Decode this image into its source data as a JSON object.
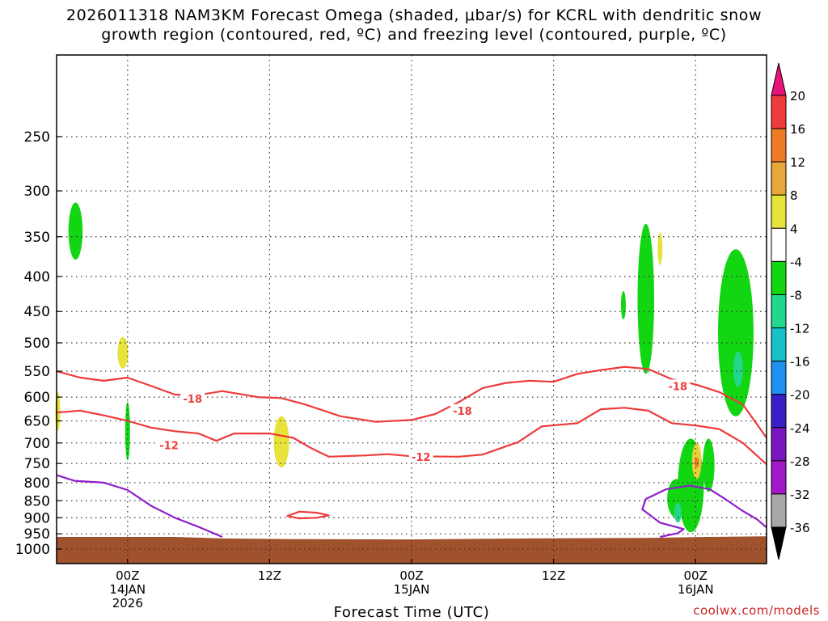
{
  "title": {
    "line1": "2026011318 NAM3KM Forecast Omega (shaded, μbar/s) for KCRL with dendritic snow",
    "line2": "growth region (contoured, red, ºC) and freezing level (contoured, purple, ºC)"
  },
  "credit": "coolwx.com/models",
  "chart_data": {
    "type": "time-height cross section",
    "xlabel": "Forecast Time (UTC)",
    "ylabel": "",
    "y_scale": "log pressure (hPa), inverted",
    "ylim": [
      1050,
      190
    ],
    "xlim_hours_from_init": [
      0,
      60
    ],
    "init_time": "2026011318",
    "y_ticks": [
      250,
      300,
      350,
      400,
      450,
      500,
      550,
      600,
      650,
      700,
      750,
      800,
      850,
      900,
      950,
      1000
    ],
    "x_ticks": [
      {
        "hour": 6,
        "label": "00Z",
        "sub1": "14JAN",
        "sub2": "2026"
      },
      {
        "hour": 18,
        "label": "12Z",
        "sub1": "",
        "sub2": ""
      },
      {
        "hour": 30,
        "label": "00Z",
        "sub1": "15JAN",
        "sub2": ""
      },
      {
        "hour": 42,
        "label": "12Z",
        "sub1": "",
        "sub2": ""
      },
      {
        "hour": 54,
        "label": "00Z",
        "sub1": "16JAN",
        "sub2": ""
      }
    ],
    "grid": true,
    "colorbar": {
      "position": "right",
      "labels": [
        "20",
        "16",
        "12",
        "8",
        "4",
        "-4",
        "-8",
        "-12",
        "-16",
        "-20",
        "-24",
        "-28",
        "-32",
        "-36"
      ],
      "colors": [
        "#e8127a",
        "#ef3b3b",
        "#ef7a28",
        "#e7a83a",
        "#e9cf3a",
        "#e7e33a",
        "#ffffff",
        "#11d611",
        "#22d68b",
        "#17c1c9",
        "#1e90f0",
        "#2a55e0",
        "#3a1ec8",
        "#7a16c0",
        "#a018c8",
        "#a8a8a8",
        "#000000"
      ]
    },
    "contours": {
      "dendritic_minus12_C": [
        {
          "hour": 0,
          "p": 632
        },
        {
          "hour": 2,
          "p": 628
        },
        {
          "hour": 4,
          "p": 638
        },
        {
          "hour": 6,
          "p": 650
        },
        {
          "hour": 8,
          "p": 665
        },
        {
          "hour": 10,
          "p": 673
        },
        {
          "hour": 12,
          "p": 678
        },
        {
          "hour": 13.5,
          "p": 695
        },
        {
          "hour": 15,
          "p": 678
        },
        {
          "hour": 18,
          "p": 678
        },
        {
          "hour": 20,
          "p": 688
        },
        {
          "hour": 21.5,
          "p": 712
        },
        {
          "hour": 23,
          "p": 733
        },
        {
          "hour": 26,
          "p": 730
        },
        {
          "hour": 28,
          "p": 727
        },
        {
          "hour": 30,
          "p": 732
        },
        {
          "hour": 34,
          "p": 733
        },
        {
          "hour": 36,
          "p": 728
        },
        {
          "hour": 39,
          "p": 698
        },
        {
          "hour": 41,
          "p": 662
        },
        {
          "hour": 44,
          "p": 655
        },
        {
          "hour": 46,
          "p": 625
        },
        {
          "hour": 48,
          "p": 622
        },
        {
          "hour": 50,
          "p": 628
        },
        {
          "hour": 52,
          "p": 655
        },
        {
          "hour": 54,
          "p": 660
        },
        {
          "hour": 56,
          "p": 668
        },
        {
          "hour": 58,
          "p": 700
        },
        {
          "hour": 60,
          "p": 752
        }
      ],
      "dendritic_minus18_C": [
        {
          "hour": 0,
          "p": 550
        },
        {
          "hour": 2,
          "p": 562
        },
        {
          "hour": 4,
          "p": 568
        },
        {
          "hour": 6,
          "p": 562
        },
        {
          "hour": 8,
          "p": 578
        },
        {
          "hour": 10,
          "p": 595
        },
        {
          "hour": 12,
          "p": 596
        },
        {
          "hour": 14,
          "p": 588
        },
        {
          "hour": 17,
          "p": 600
        },
        {
          "hour": 19,
          "p": 602
        },
        {
          "hour": 21,
          "p": 615
        },
        {
          "hour": 24,
          "p": 640
        },
        {
          "hour": 27,
          "p": 652
        },
        {
          "hour": 30,
          "p": 648
        },
        {
          "hour": 32,
          "p": 635
        },
        {
          "hour": 34,
          "p": 610
        },
        {
          "hour": 36,
          "p": 582
        },
        {
          "hour": 38,
          "p": 572
        },
        {
          "hour": 40,
          "p": 568
        },
        {
          "hour": 42,
          "p": 570
        },
        {
          "hour": 44,
          "p": 555
        },
        {
          "hour": 46,
          "p": 548
        },
        {
          "hour": 48,
          "p": 542
        },
        {
          "hour": 50,
          "p": 546
        },
        {
          "hour": 52,
          "p": 565
        },
        {
          "hour": 54,
          "p": 575
        },
        {
          "hour": 56,
          "p": 590
        },
        {
          "hour": 58,
          "p": 615
        },
        {
          "hour": 60,
          "p": 688
        }
      ],
      "dendritic_closed_minus12_C": [
        {
          "hour": 19.5,
          "p": 895
        },
        {
          "hour": 20.5,
          "p": 882
        },
        {
          "hour": 22,
          "p": 885
        },
        {
          "hour": 23,
          "p": 893
        },
        {
          "hour": 22,
          "p": 900
        },
        {
          "hour": 20.5,
          "p": 902
        }
      ],
      "freezing_level_0_C": [
        {
          "hour": 0,
          "p": 780
        },
        {
          "hour": 1.5,
          "p": 795
        },
        {
          "hour": 4,
          "p": 800
        },
        {
          "hour": 6,
          "p": 820
        },
        {
          "hour": 8,
          "p": 865
        },
        {
          "hour": 10,
          "p": 900
        },
        {
          "hour": 12,
          "p": 928
        },
        {
          "hour": 14,
          "p": 960
        }
      ],
      "freezing_level_right_0_C": [
        {
          "hour": 51,
          "p": 960
        },
        {
          "hour": 52.5,
          "p": 948
        },
        {
          "hour": 53,
          "p": 935
        },
        {
          "hour": 51,
          "p": 915
        },
        {
          "hour": 49.5,
          "p": 875
        },
        {
          "hour": 49.8,
          "p": 845
        },
        {
          "hour": 51.5,
          "p": 818
        },
        {
          "hour": 53.5,
          "p": 808
        },
        {
          "hour": 55.2,
          "p": 818
        },
        {
          "hour": 56.5,
          "p": 845
        },
        {
          "hour": 58,
          "p": 880
        },
        {
          "hour": 59.2,
          "p": 905
        },
        {
          "hour": 60,
          "p": 930
        }
      ]
    },
    "contour_labels": [
      {
        "text": "-18",
        "hour": 11.5,
        "p": 603
      },
      {
        "text": "-18",
        "hour": 34.3,
        "p": 628
      },
      {
        "text": "-18",
        "hour": 52.5,
        "p": 578
      },
      {
        "text": "-12",
        "hour": 9.5,
        "p": 705
      },
      {
        "text": "-12",
        "hour": 30.8,
        "p": 733
      }
    ],
    "shaded_regions": [
      {
        "value": -8,
        "hour": 1.6,
        "p_top": 312,
        "p_bottom": 378,
        "width_h": 1.2
      },
      {
        "value": -8,
        "hour": 6.0,
        "p_top": 610,
        "p_bottom": 742,
        "width_h": 0.35
      },
      {
        "value": -8,
        "hour": 49.8,
        "p_top": 335,
        "p_bottom": 555,
        "width_h": 1.4
      },
      {
        "value": -8,
        "hour": 47.9,
        "p_top": 420,
        "p_bottom": 462,
        "width_h": 0.3
      },
      {
        "value": -8,
        "hour": 57.4,
        "p_top": 365,
        "p_bottom": 640,
        "width_h": 3.0
      },
      {
        "value": -8,
        "hour": 55.1,
        "p_top": 690,
        "p_bottom": 825,
        "width_h": 1.0
      },
      {
        "value": -8,
        "hour": 53.6,
        "p_top": 690,
        "p_bottom": 945,
        "width_h": 2.2
      },
      {
        "value": -8,
        "hour": 52.4,
        "p_top": 790,
        "p_bottom": 900,
        "width_h": 1.6
      },
      {
        "value": -12,
        "hour": 57.6,
        "p_top": 515,
        "p_bottom": 580,
        "width_h": 0.8
      },
      {
        "value": -12,
        "hour": 52.5,
        "p_top": 855,
        "p_bottom": 915,
        "width_h": 0.6
      },
      {
        "value": 4,
        "hour": 5.6,
        "p_top": 490,
        "p_bottom": 545,
        "width_h": 0.9
      },
      {
        "value": 4,
        "hour": 0.1,
        "p_top": 590,
        "p_bottom": 672,
        "width_h": 0.35
      },
      {
        "value": 4,
        "hour": 19.0,
        "p_top": 640,
        "p_bottom": 760,
        "width_h": 1.3
      },
      {
        "value": 4,
        "hour": 51.0,
        "p_top": 345,
        "p_bottom": 385,
        "width_h": 0.3
      },
      {
        "value": 8,
        "hour": 54.1,
        "p_top": 700,
        "p_bottom": 790,
        "width_h": 0.8
      },
      {
        "value": 12,
        "hour": 54.1,
        "p_top": 735,
        "p_bottom": 760,
        "width_h": 0.25
      }
    ],
    "ground_surface": [
      {
        "hour": 0,
        "p": 960
      },
      {
        "hour": 10,
        "p": 960
      },
      {
        "hour": 14,
        "p": 965
      },
      {
        "hour": 20,
        "p": 967
      },
      {
        "hour": 30,
        "p": 968
      },
      {
        "hour": 40,
        "p": 965
      },
      {
        "hour": 50,
        "p": 963
      },
      {
        "hour": 55,
        "p": 960
      },
      {
        "hour": 60,
        "p": 958
      }
    ],
    "ground_color": "#a0522d"
  }
}
